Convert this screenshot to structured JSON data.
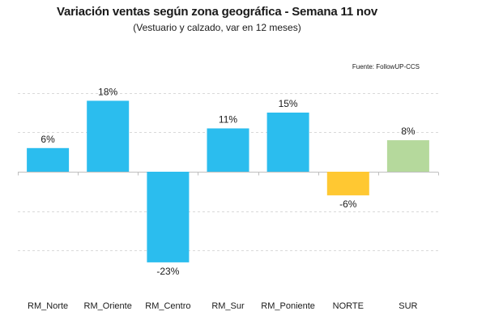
{
  "chart_data": {
    "type": "bar",
    "title": "Variación ventas según zona geográfica - Semana 11 nov",
    "subtitle": "(Vestuario y calzado, var en 12 meses)",
    "source": "Fuente: FollowUP-CCS",
    "xlabel": "",
    "ylabel": "",
    "ylim": [
      -30,
      30
    ],
    "grid": true,
    "categories": [
      "RM_Norte",
      "RM_Oriente",
      "RM_Centro",
      "RM_Sur",
      "RM_Poniente",
      "NORTE",
      "SUR"
    ],
    "values": [
      6,
      18,
      -23,
      11,
      15,
      -6,
      8
    ],
    "value_labels": [
      "6%",
      "18%",
      "-23%",
      "11%",
      "15%",
      "-6%",
      "8%"
    ],
    "colors": [
      "#2BBDEE",
      "#2BBDEE",
      "#2BBDEE",
      "#2BBDEE",
      "#2BBDEE",
      "#FFC832",
      "#B5D99C"
    ]
  }
}
